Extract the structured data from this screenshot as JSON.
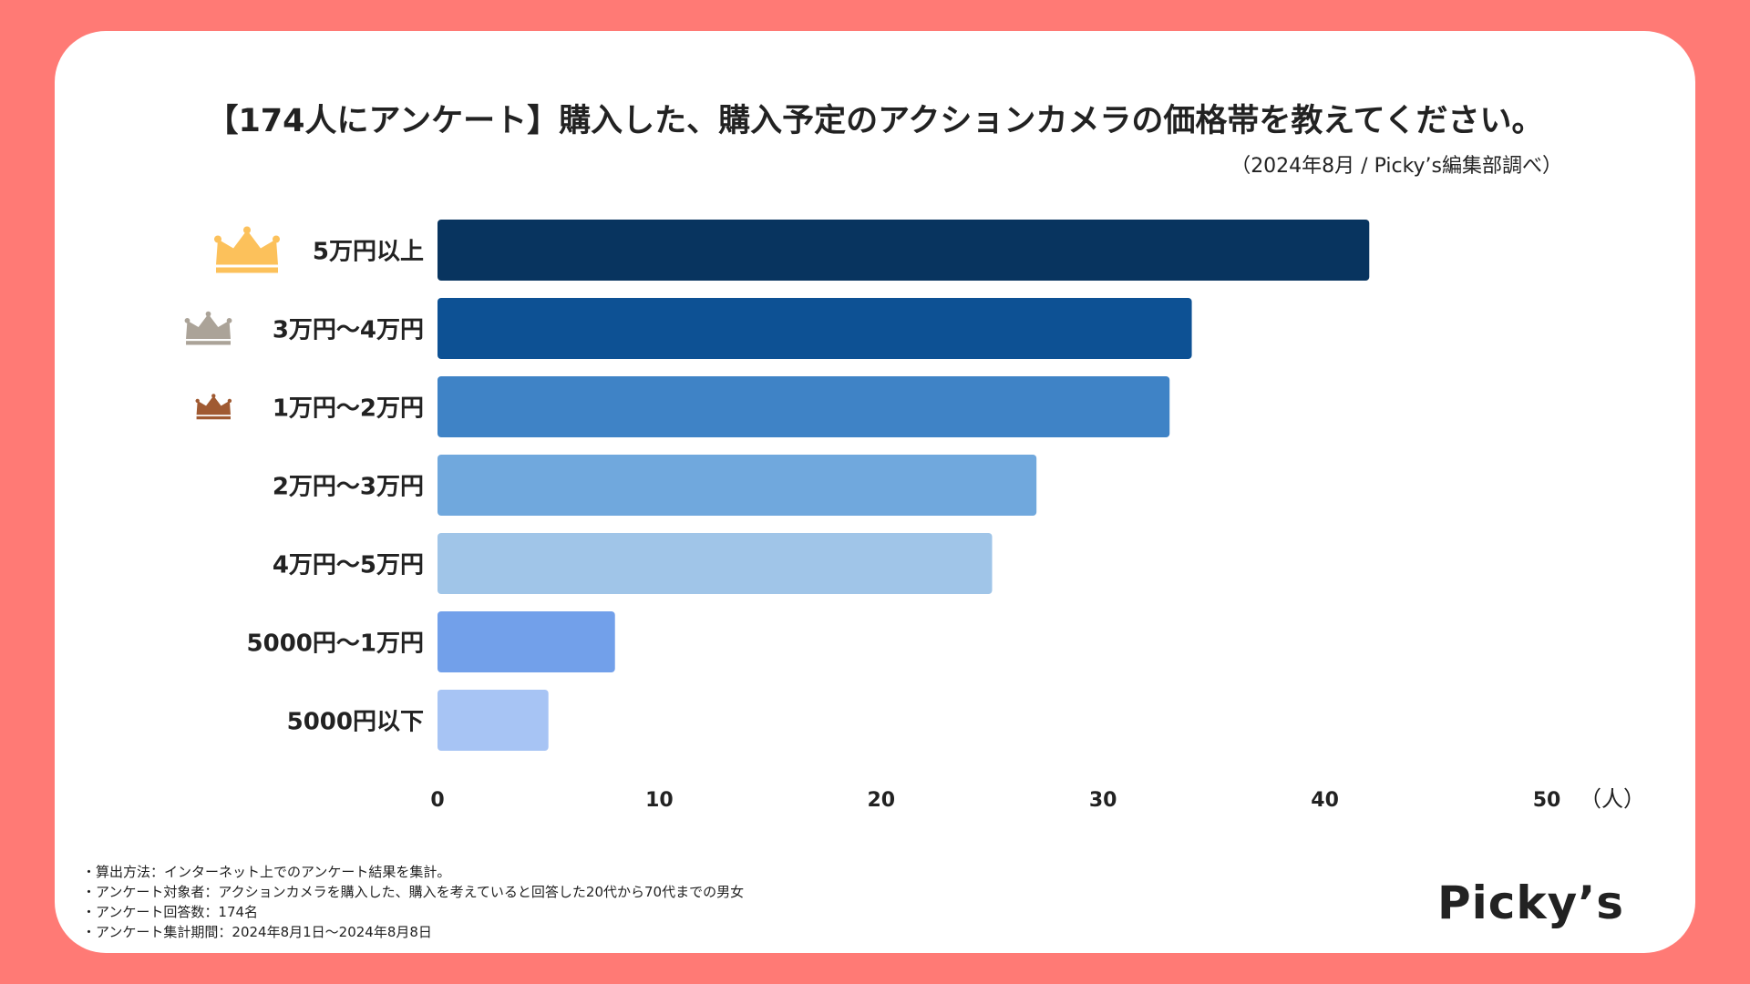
{
  "header": {
    "title": "【174人にアンケート】購入した、購入予定のアクションカメラの価格帯を教えてください。",
    "source": "（2024年8月 / Picky’s編集部調べ）"
  },
  "chart_data": {
    "type": "bar",
    "orientation": "horizontal",
    "categories": [
      "5万円以上",
      "3万円〜4万円",
      "1万円〜2万円",
      "2万円〜3万円",
      "4万円〜5万円",
      "5000円〜1万円",
      "5000円以下"
    ],
    "values": [
      42,
      34,
      33,
      27,
      25,
      8,
      5
    ],
    "colors": [
      "#08345f",
      "#0d5194",
      "#3f83c6",
      "#70a8dd",
      "#a0c5e8",
      "#72a0ea",
      "#a7c4f4"
    ],
    "rank_icons": [
      "crown-gold-icon",
      "crown-silver-icon",
      "crown-bronze-icon"
    ],
    "rank_colors": [
      "#fcc15b",
      "#aba398",
      "#a05a32"
    ],
    "x_ticks": [
      "0",
      "10",
      "20",
      "30",
      "40",
      "50"
    ],
    "xlim": [
      0,
      50
    ],
    "xlabel": "（人）",
    "grid": false
  },
  "notes": [
    "・算出方法：インターネット上でのアンケート結果を集計。",
    "・アンケート対象者：アクションカメラを購入した、購入を考えていると回答した20代から70代までの男女",
    "・アンケート回答数：174名",
    "・アンケート集計期間：2024年8月1日〜2024年8月8日"
  ],
  "brand": {
    "logo_text": "Picky’s"
  }
}
